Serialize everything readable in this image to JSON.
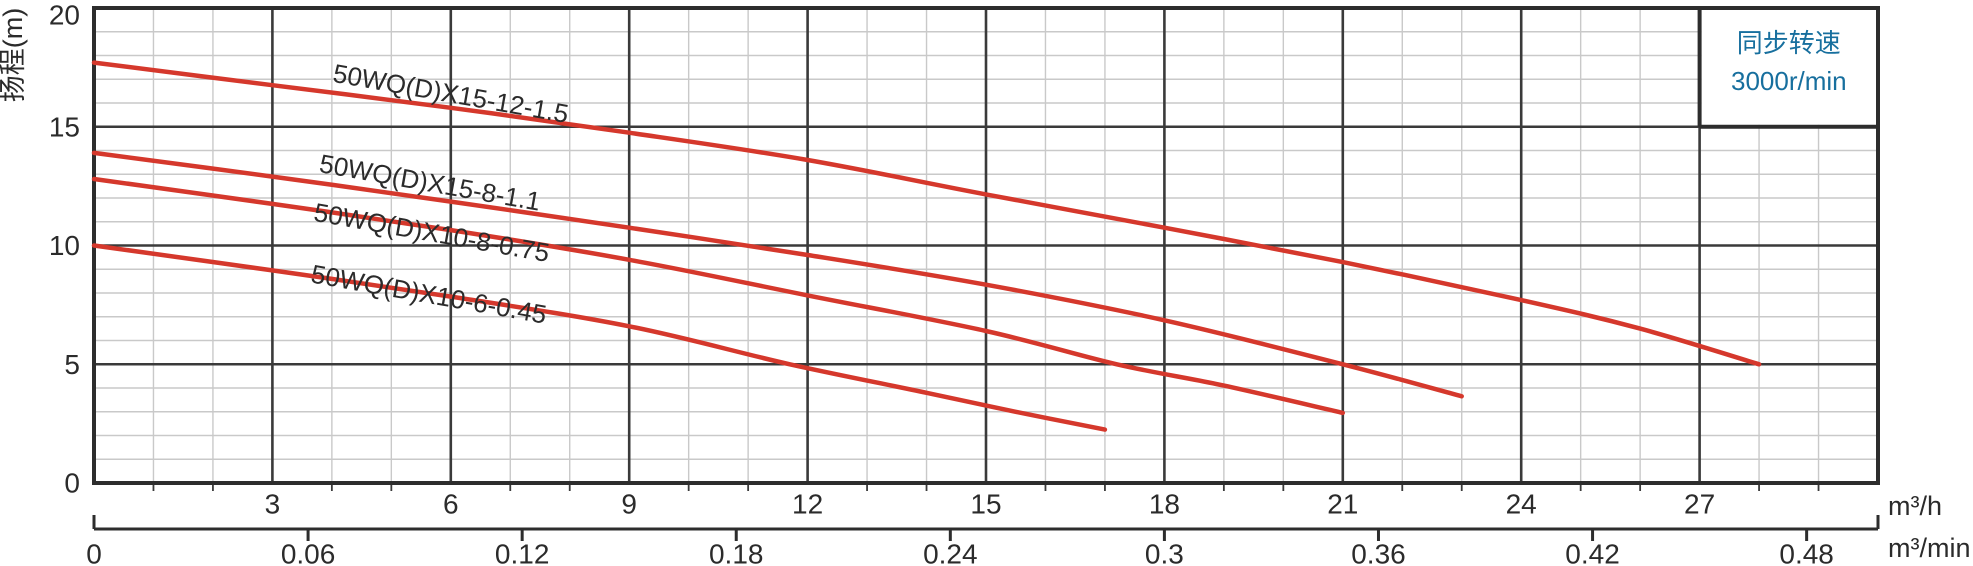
{
  "legend": {
    "line1": "同步转速",
    "line2": "3000r/min",
    "text_color": "#176f9e"
  },
  "chart_data": {
    "type": "line",
    "title": "",
    "ylabel": "扬程(m)",
    "unit_h": "m³/h",
    "unit_min": "m³/min",
    "xlim_m3h": [
      0,
      30
    ],
    "ylim_m": [
      0,
      20
    ],
    "x_major_step": 3,
    "x_minor_step": 1,
    "y_major_step": 5,
    "y_minor_step": 1,
    "grid": "major+minor",
    "legend_position": "top-right-box",
    "annotation": "同步转速 3000r/min",
    "y_ticks": [
      {
        "v": 0,
        "label": "0"
      },
      {
        "v": 5,
        "label": "5"
      },
      {
        "v": 10,
        "label": "10"
      },
      {
        "v": 15,
        "label": "15"
      },
      {
        "v": 20,
        "label": "20"
      }
    ],
    "x_ticks_h": [
      {
        "v": 3,
        "label": "3"
      },
      {
        "v": 6,
        "label": "6"
      },
      {
        "v": 9,
        "label": "9"
      },
      {
        "v": 12,
        "label": "12"
      },
      {
        "v": 15,
        "label": "15"
      },
      {
        "v": 18,
        "label": "18"
      },
      {
        "v": 21,
        "label": "21"
      },
      {
        "v": 24,
        "label": "24"
      },
      {
        "v": 27,
        "label": "27"
      }
    ],
    "x_ticks_min": [
      {
        "v": 0,
        "label": "0"
      },
      {
        "v": 0.06,
        "label": "0.06"
      },
      {
        "v": 0.12,
        "label": "0.12"
      },
      {
        "v": 0.18,
        "label": "0.18"
      },
      {
        "v": 0.24,
        "label": "0.24"
      },
      {
        "v": 0.3,
        "label": "0.3"
      },
      {
        "v": 0.36,
        "label": "0.36"
      },
      {
        "v": 0.42,
        "label": "0.42"
      },
      {
        "v": 0.48,
        "label": "0.48"
      }
    ],
    "series": [
      {
        "name": "50WQ(D)X15-12-1.5",
        "color": "#d5382c",
        "points": [
          [
            0,
            17.7
          ],
          [
            3,
            16.75
          ],
          [
            6,
            15.8
          ],
          [
            9,
            14.75
          ],
          [
            12,
            13.6
          ],
          [
            15,
            12.15
          ],
          [
            18,
            10.75
          ],
          [
            21,
            9.3
          ],
          [
            24,
            7.7
          ],
          [
            26,
            6.5
          ],
          [
            28,
            5.0
          ]
        ],
        "label_at": {
          "q": 4.0,
          "h": 16.9
        },
        "label_rotation_deg": 10
      },
      {
        "name": "50WQ(D)X15-8-1.1",
        "color": "#d5382c",
        "points": [
          [
            0,
            13.9
          ],
          [
            3,
            12.9
          ],
          [
            6,
            11.85
          ],
          [
            9,
            10.75
          ],
          [
            12,
            9.6
          ],
          [
            15,
            8.35
          ],
          [
            18,
            6.85
          ],
          [
            21,
            5.0
          ],
          [
            23,
            3.65
          ]
        ],
        "label_at": {
          "q": 3.77,
          "h": 13.1
        },
        "label_rotation_deg": 10
      },
      {
        "name": "50WQ(D)X10-8-0.75",
        "color": "#d5382c",
        "points": [
          [
            0,
            12.8
          ],
          [
            3,
            11.75
          ],
          [
            6,
            10.65
          ],
          [
            9,
            9.4
          ],
          [
            12,
            7.9
          ],
          [
            15,
            6.4
          ],
          [
            17.2,
            5.0
          ],
          [
            19,
            4.1
          ],
          [
            21,
            2.95
          ]
        ],
        "label_at": {
          "q": 3.68,
          "h": 11.05
        },
        "label_rotation_deg": 10
      },
      {
        "name": "50WQ(D)X10-6-0.45",
        "color": "#d5382c",
        "points": [
          [
            0,
            10.0
          ],
          [
            3,
            8.95
          ],
          [
            6,
            7.85
          ],
          [
            9,
            6.6
          ],
          [
            11.7,
            5.0
          ],
          [
            14,
            3.8
          ],
          [
            15.5,
            3.0
          ],
          [
            17,
            2.25
          ]
        ],
        "label_at": {
          "q": 3.63,
          "h": 8.45
        },
        "label_rotation_deg": 10
      }
    ],
    "style": {
      "curve_color": "#d5382c",
      "frame_color": "#2d2d2d",
      "major_grid_color": "#3a3a3a",
      "minor_grid_color": "#c9c9c9",
      "text_color": "#2b2b2b"
    }
  }
}
